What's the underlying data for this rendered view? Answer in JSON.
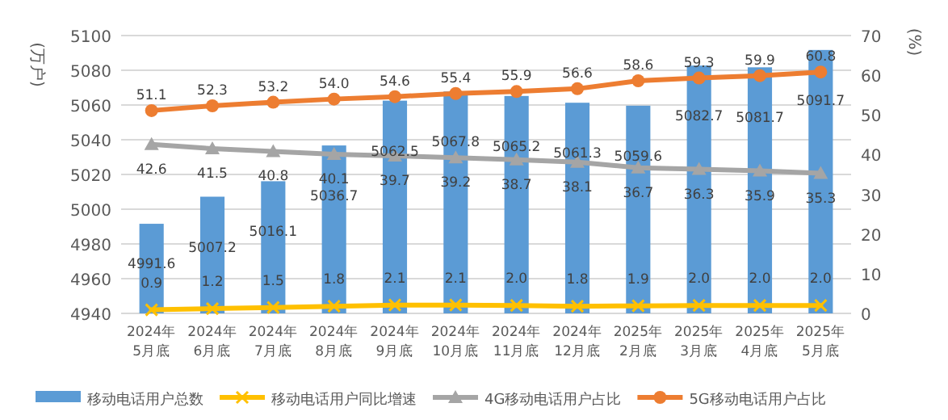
{
  "chart_data": {
    "type": "bar",
    "categories": [
      "2024年\n5月底",
      "2024年\n6月底",
      "2024年\n7月底",
      "2024年\n8月底",
      "2024年\n9月底",
      "2024年\n10月底",
      "2024年\n11月底",
      "2024年\n12月底",
      "2025年\n2月底",
      "2025年\n3月底",
      "2025年\n4月底",
      "2025年\n5月底"
    ],
    "series": [
      {
        "name": "移动电话用户总数",
        "color": "#5b9bd5",
        "values": [
          4991.6,
          5007.2,
          5016.1,
          5036.7,
          5062.5,
          5067.8,
          5065.2,
          5061.3,
          5059.6,
          5082.7,
          5081.7,
          5091.7
        ]
      },
      {
        "name": "移动电话用户同比增速",
        "type": "line",
        "axis": "y2",
        "marker": "cross",
        "color": "#ffc000",
        "values": [
          0.9,
          1.2,
          1.5,
          1.8,
          2.1,
          2.1,
          2.0,
          1.8,
          1.9,
          2.0,
          2.0,
          2.0
        ],
        "value_labels": [
          "0.9",
          "1.2",
          "1.5",
          "1.8",
          "2.1",
          "2.1",
          "2.0",
          "1.8",
          "1.9",
          "2.0",
          "2.0",
          "2.0"
        ]
      },
      {
        "name": "4G移动电话用户占比",
        "type": "line",
        "axis": "y2",
        "marker": "triangle",
        "color": "#a5a5a5",
        "values": [
          42.6,
          41.5,
          40.8,
          40.1,
          39.7,
          39.2,
          38.7,
          38.1,
          36.7,
          36.3,
          35.9,
          35.3
        ],
        "value_labels": [
          "42.6",
          "41.5",
          "40.8",
          "40.1",
          "39.7",
          "39.2",
          "38.7",
          "38.1",
          "36.7",
          "36.3",
          "35.9",
          "35.3"
        ]
      },
      {
        "name": "5G移动电话用户占比",
        "type": "line",
        "axis": "y2",
        "marker": "circle",
        "color": "#ed7d31",
        "values": [
          51.1,
          52.3,
          53.2,
          54.0,
          54.6,
          55.4,
          55.9,
          56.6,
          58.6,
          59.3,
          59.9,
          60.8
        ],
        "value_labels": [
          "51.1",
          "52.3",
          "53.2",
          "54.0",
          "54.6",
          "55.4",
          "55.9",
          "56.6",
          "58.6",
          "59.3",
          "59.9",
          "60.8"
        ]
      }
    ],
    "ylabel": "(万户)",
    "y2label": "(%)",
    "ylim": [
      4940,
      5100
    ],
    "yticks": [
      4940,
      4960,
      4980,
      5000,
      5020,
      5040,
      5060,
      5080,
      5100
    ],
    "y2lim": [
      0,
      70
    ],
    "y2ticks": [
      0,
      10,
      20,
      30,
      40,
      50,
      60,
      70
    ],
    "grid": "y",
    "legend": "bottom",
    "data_labels": true
  }
}
